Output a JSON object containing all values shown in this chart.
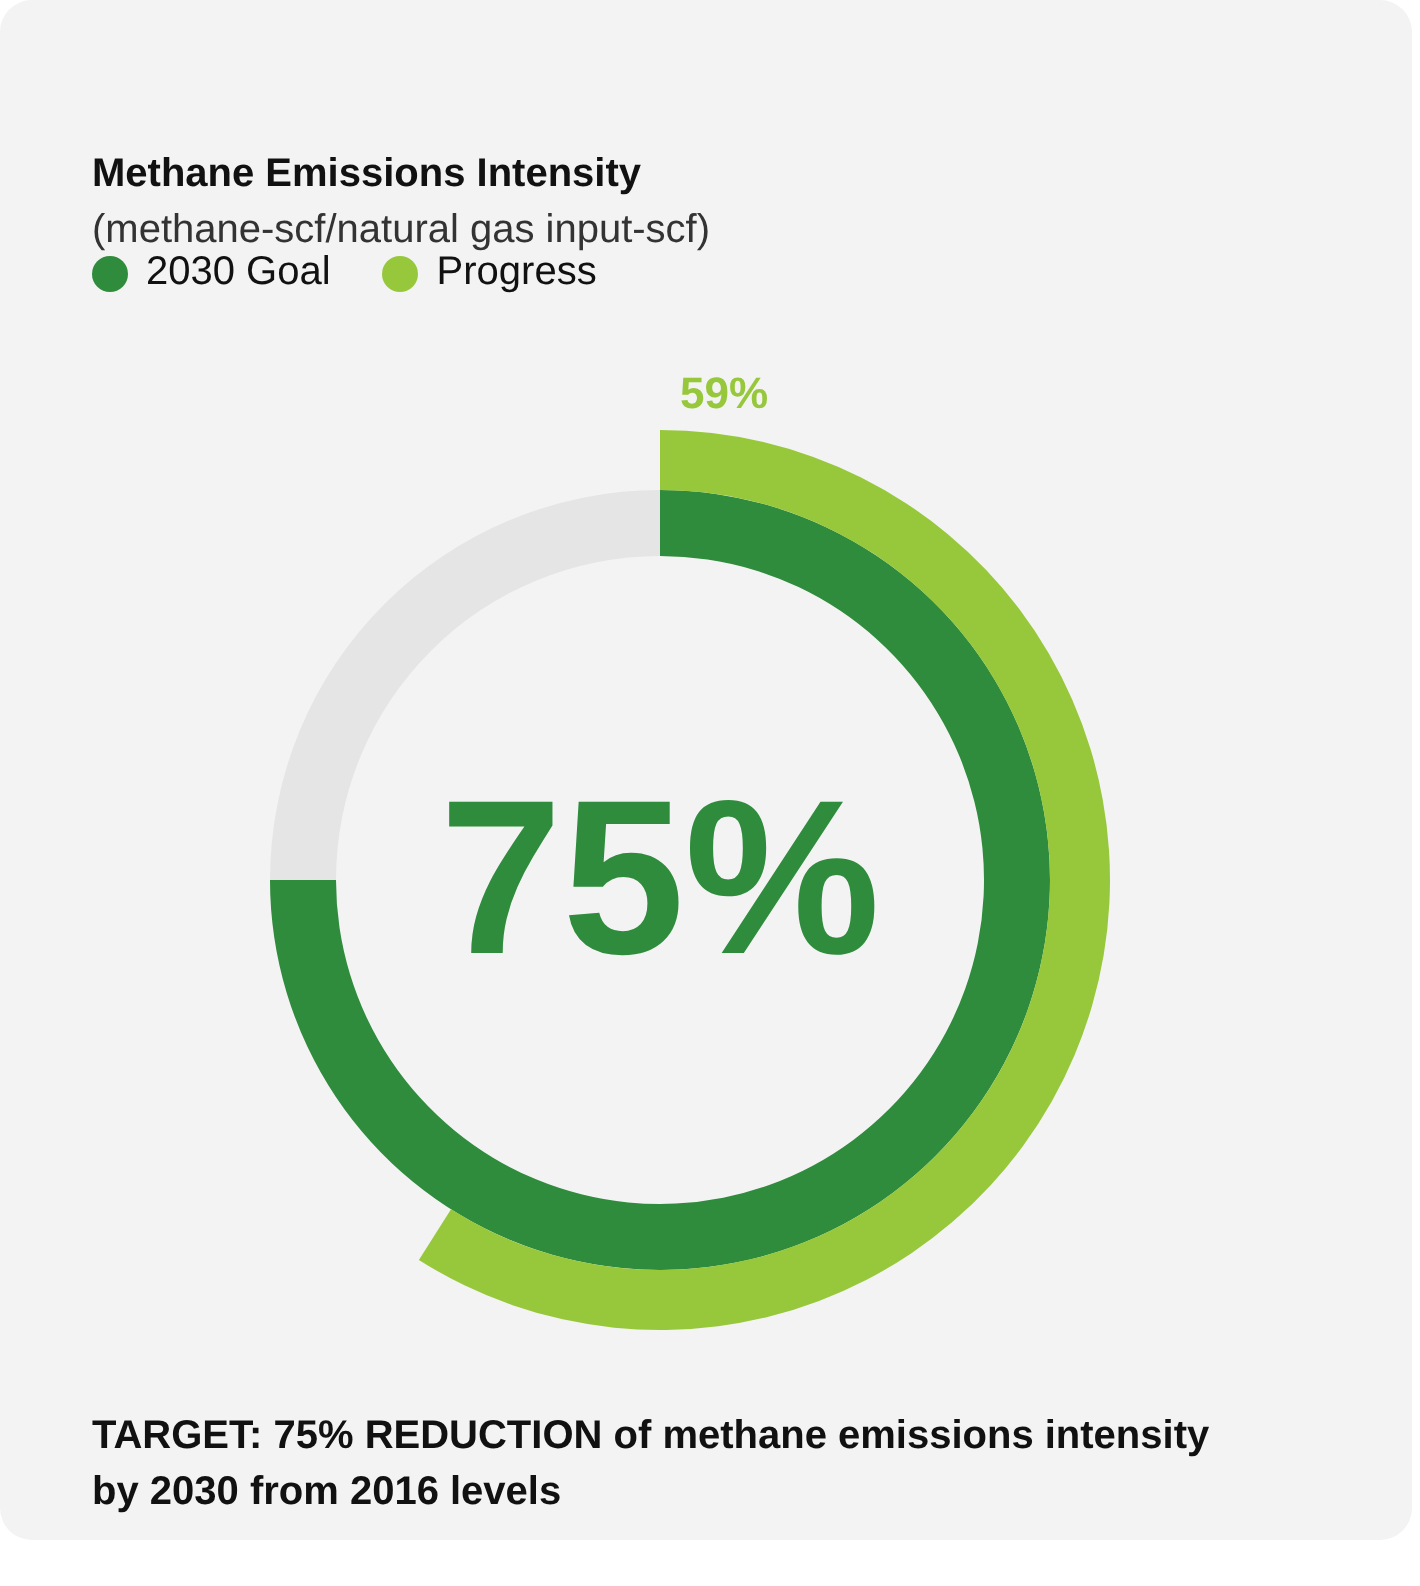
{
  "chart_data": {
    "type": "donut",
    "title": "Methane Emissions Intensity",
    "subtitle": "(methane-scf/natural gas input-scf)",
    "legend": "top left",
    "annotations": [
      "TARGET: 75% REDUCTION of methane emissions intensity by 2030 from 2016 levels"
    ],
    "series": [
      {
        "name": "2030 Goal",
        "color": "#2e8c3c",
        "colors": [
          "#2e8c3c",
          "#e5e5e5"
        ],
        "values": [
          75,
          25
        ],
        "value_labels": [
          "75%",
          null
        ]
      },
      {
        "name": "Progress",
        "color": "#97c83c",
        "values": [
          59
        ],
        "value_labels": [
          "59%"
        ]
      }
    ]
  }
}
